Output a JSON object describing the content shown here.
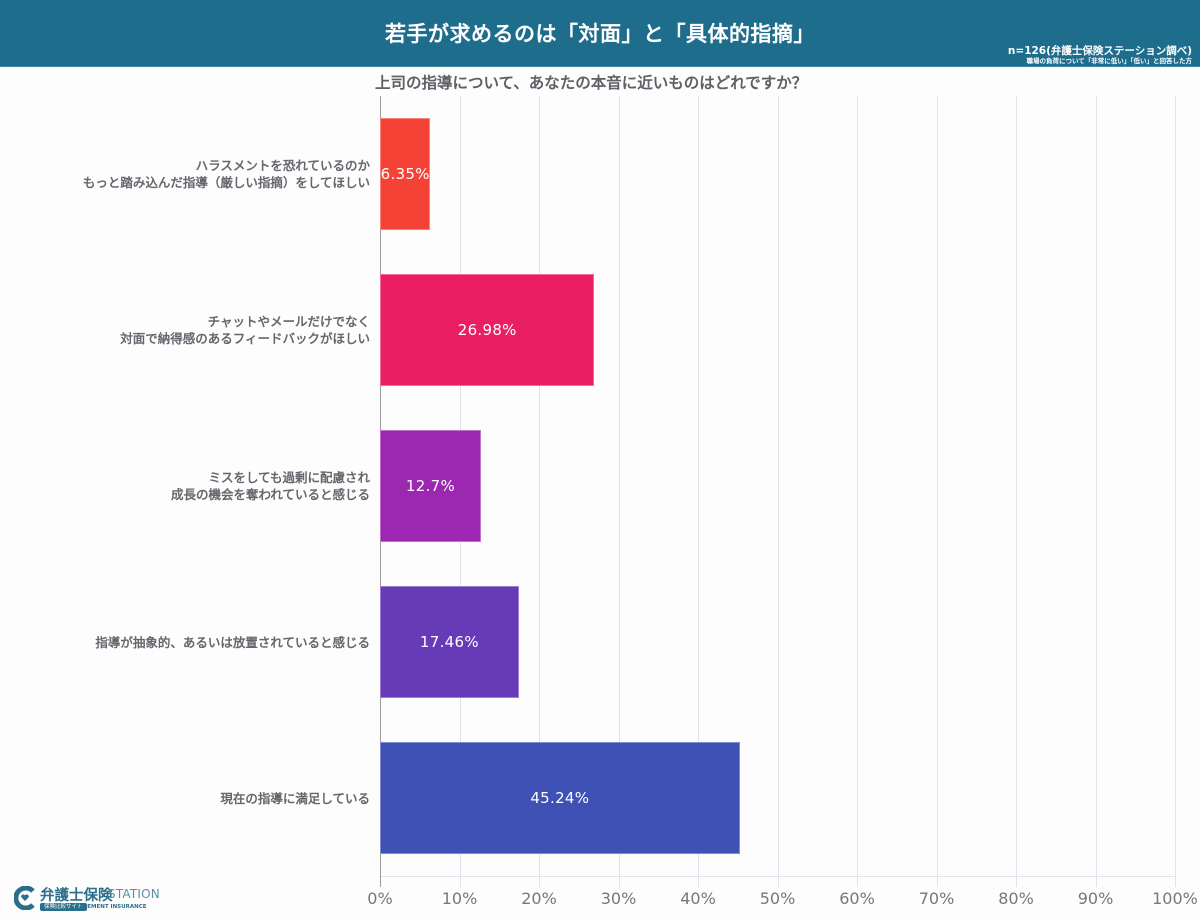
{
  "header": {
    "title": "若手が求めるのは「対面」と「具体的指摘」",
    "sample_note": "n=126(弁護士保険ステーション調べ)",
    "respondent_note": "職場の負荷について「非常に低い」「低い」と回答した方",
    "background_color": "#1f6d8c"
  },
  "question": "上司の指導について、あなたの本音に近いものはどれですか？",
  "logo": {
    "name": "弁護士保険",
    "suffix": "STATION",
    "badge": "保険比較サイト",
    "sub": "ELEMENT INSURANCE",
    "icon": "heart-c-logo-icon"
  },
  "chart_data": {
    "type": "bar",
    "orientation": "horizontal",
    "title": "若手が求めるのは「対面」と「具体的指摘」",
    "subtitle": "上司の指導について、あなたの本音に近いものはどれですか？",
    "annotation": "n=126(弁護士保険ステーション調べ) 職場の負荷について「非常に低い」「低い」と回答した方",
    "categories": [
      "ハラスメントを恐れているのか\nもっと踏み込んだ指導（厳しい指摘）をしてほしい",
      "チャットやメールだけでなく\n対面で納得感のあるフィードバックがほしい",
      "ミスをしても過剰に配慮され\n成長の機会を奪われていると感じる",
      "指導が抽象的、あるいは放置されていると感じる",
      "現在の指導に満足している"
    ],
    "values": [
      6.35,
      26.98,
      12.7,
      17.46,
      45.24
    ],
    "value_labels": [
      "6.35%",
      "26.98%",
      "12.7%",
      "17.46%",
      "45.24%"
    ],
    "colors": [
      "#f44336",
      "#e91e63",
      "#9c27b0",
      "#673ab7",
      "#3f51b5"
    ],
    "xlabel": "",
    "ylabel": "",
    "xlim": [
      0,
      100
    ],
    "x_ticks": [
      "0%",
      "10%",
      "20%",
      "30%",
      "40%",
      "50%",
      "60%",
      "70%",
      "80%",
      "90%",
      "100%"
    ],
    "grid": true,
    "legend": false
  }
}
